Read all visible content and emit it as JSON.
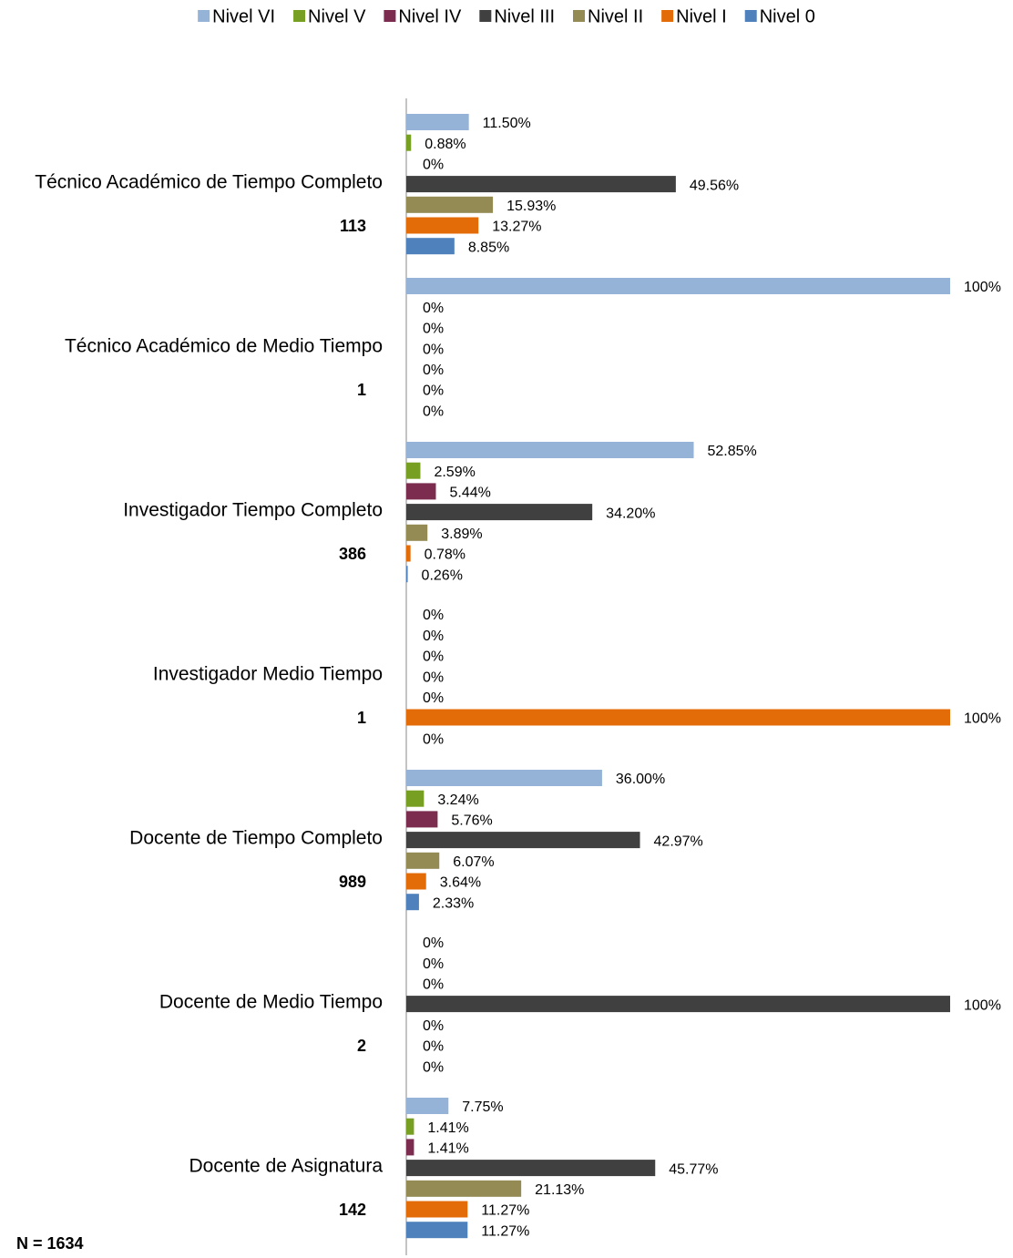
{
  "chart_data": {
    "type": "hbar",
    "categories": [
      "Técnico Académico de Tiempo Completo",
      "Técnico Académico de Medio Tiempo",
      "Investigador Tiempo Completo",
      "Investigador Medio Tiempo",
      "Docente de Tiempo Completo",
      "Docente de Medio Tiempo",
      "Docente de Asignatura"
    ],
    "category_counts": [
      113,
      1,
      386,
      1,
      989,
      2,
      142
    ],
    "annotation": "N = 1634",
    "xlim": [
      0,
      100
    ],
    "legend": "top",
    "series": [
      {
        "name": "Nivel VI",
        "color": "#95b3d7",
        "values": [
          11.5,
          100,
          52.85,
          0,
          36.0,
          0,
          7.75
        ],
        "value_labels": [
          "11.50%",
          "100%",
          "52.85%",
          "0%",
          "36.00%",
          "0%",
          "7.75%"
        ]
      },
      {
        "name": "Nivel V",
        "color": "#77a022",
        "values": [
          0.88,
          0,
          2.59,
          0,
          3.24,
          0,
          1.41
        ],
        "value_labels": [
          "0.88%",
          "0%",
          "2.59%",
          "0%",
          "3.24%",
          "0%",
          "1.41%"
        ]
      },
      {
        "name": "Nivel IV",
        "color": "#7b2c4f",
        "values": [
          0,
          0,
          5.44,
          0,
          5.76,
          0,
          1.41
        ],
        "value_labels": [
          "0%",
          "0%",
          "5.44%",
          "0%",
          "5.76%",
          "0%",
          "1.41%"
        ]
      },
      {
        "name": "Nivel III",
        "color": "#404040",
        "values": [
          49.56,
          0,
          34.2,
          0,
          42.97,
          100,
          45.77
        ],
        "value_labels": [
          "49.56%",
          "0%",
          "34.20%",
          "0%",
          "42.97%",
          "100%",
          "45.77%"
        ]
      },
      {
        "name": "Nivel II",
        "color": "#948a54",
        "values": [
          15.93,
          0,
          3.89,
          0,
          6.07,
          0,
          21.13
        ],
        "value_labels": [
          "15.93%",
          "0%",
          "3.89%",
          "0%",
          "6.07%",
          "0%",
          "21.13%"
        ]
      },
      {
        "name": "Nivel I",
        "color": "#e36c09",
        "values": [
          13.27,
          0,
          0.78,
          100,
          3.64,
          0,
          11.27
        ],
        "value_labels": [
          "13.27%",
          "0%",
          "0.78%",
          "100%",
          "3.64%",
          "0%",
          "11.27%"
        ]
      },
      {
        "name": "Nivel 0",
        "color": "#4f81bd",
        "values": [
          8.85,
          0,
          0.26,
          0,
          2.33,
          0,
          11.27
        ],
        "value_labels": [
          "8.85%",
          "0%",
          "0.26%",
          "0%",
          "2.33%",
          "0%",
          "11.27%"
        ]
      }
    ]
  }
}
